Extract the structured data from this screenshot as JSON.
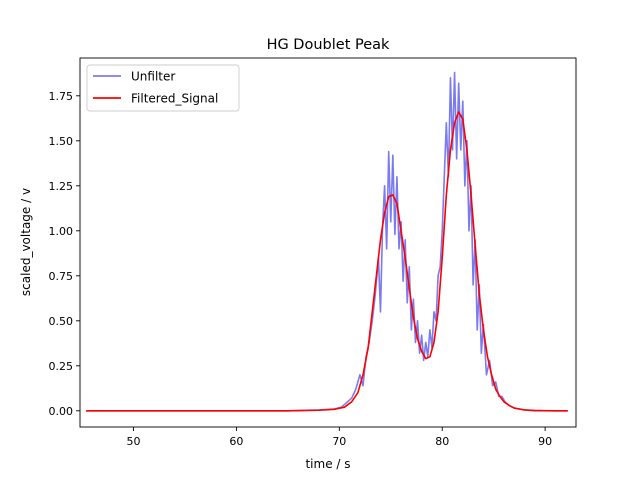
{
  "chart_data": {
    "type": "line",
    "title": "HG Doublet Peak",
    "xlabel": "time / s",
    "ylabel": "scaled_voltage / v",
    "xlim": [
      44.8,
      93.0
    ],
    "ylim": [
      -0.09,
      1.96
    ],
    "xticks": [
      50,
      60,
      70,
      80,
      90
    ],
    "yticks": [
      0.0,
      0.25,
      0.5,
      0.75,
      1.0,
      1.25,
      1.5,
      1.75
    ],
    "xtick_labels": [
      "50",
      "60",
      "70",
      "80",
      "90"
    ],
    "ytick_labels": [
      "0.00",
      "0.25",
      "0.50",
      "0.75",
      "1.00",
      "1.25",
      "1.50",
      "1.75"
    ],
    "grid": false,
    "legend_position": "top-left",
    "series": [
      {
        "name": "Unfilter",
        "color": "#7b7bf0",
        "x": [
          45.4,
          48,
          50,
          55,
          60,
          65,
          68,
          69.5,
          70.2,
          70.8,
          71.2,
          71.6,
          72.0,
          72.3,
          72.6,
          72.9,
          73.2,
          73.5,
          73.8,
          74.0,
          74.2,
          74.4,
          74.6,
          74.8,
          75.0,
          75.2,
          75.4,
          75.6,
          75.8,
          76.0,
          76.2,
          76.4,
          76.6,
          76.8,
          77.0,
          77.2,
          77.4,
          77.6,
          77.8,
          78.0,
          78.2,
          78.4,
          78.6,
          78.8,
          79.0,
          79.2,
          79.4,
          79.6,
          79.8,
          80.0,
          80.2,
          80.4,
          80.6,
          80.8,
          81.0,
          81.2,
          81.4,
          81.6,
          81.8,
          82.0,
          82.2,
          82.4,
          82.6,
          82.8,
          83.0,
          83.2,
          83.4,
          83.6,
          83.8,
          84.0,
          84.3,
          84.6,
          84.9,
          85.2,
          85.5,
          85.8,
          86.1,
          86.5,
          87.0,
          87.5,
          88.0,
          89.0,
          90.0,
          91.0,
          92.2
        ],
        "y": [
          0.0,
          0.0,
          0.0,
          0.0,
          0.0,
          0.0,
          0.005,
          0.01,
          0.02,
          0.05,
          0.07,
          0.12,
          0.2,
          0.14,
          0.3,
          0.38,
          0.5,
          0.65,
          0.85,
          0.55,
          1.02,
          1.25,
          0.9,
          1.44,
          1.05,
          1.42,
          0.98,
          1.3,
          0.9,
          1.05,
          0.72,
          0.95,
          0.6,
          0.8,
          0.45,
          0.62,
          0.38,
          0.5,
          0.32,
          0.42,
          0.28,
          0.38,
          0.3,
          0.45,
          0.35,
          0.55,
          0.5,
          0.75,
          0.8,
          1.0,
          1.3,
          1.6,
          1.3,
          1.85,
          1.45,
          1.88,
          1.4,
          1.82,
          1.45,
          1.72,
          1.25,
          1.5,
          1.0,
          1.25,
          0.7,
          0.95,
          0.45,
          0.7,
          0.32,
          0.48,
          0.2,
          0.28,
          0.14,
          0.16,
          0.08,
          0.08,
          0.05,
          0.03,
          0.015,
          0.01,
          0.005,
          0.0,
          0.0,
          0.0,
          0.0
        ]
      },
      {
        "name": "Filtered_Signal",
        "color": "#ff0000",
        "x": [
          45.4,
          50,
          55,
          60,
          65,
          68,
          69.5,
          70.5,
          71.2,
          71.8,
          72.3,
          72.8,
          73.2,
          73.6,
          74.0,
          74.4,
          74.8,
          75.2,
          75.6,
          76.0,
          76.4,
          76.8,
          77.2,
          77.6,
          78.0,
          78.4,
          78.8,
          79.2,
          79.6,
          80.0,
          80.4,
          80.8,
          81.2,
          81.6,
          82.0,
          82.4,
          82.8,
          83.2,
          83.6,
          84.0,
          84.4,
          84.8,
          85.2,
          85.6,
          86.0,
          86.5,
          87.0,
          87.5,
          88.0,
          89.0,
          90.0,
          91.0,
          92.2
        ],
        "y": [
          0.0,
          0.0,
          0.0,
          0.0,
          0.0,
          0.003,
          0.008,
          0.02,
          0.05,
          0.1,
          0.2,
          0.35,
          0.55,
          0.75,
          0.95,
          1.1,
          1.19,
          1.2,
          1.15,
          1.0,
          0.85,
          0.68,
          0.52,
          0.4,
          0.33,
          0.29,
          0.3,
          0.38,
          0.55,
          0.85,
          1.2,
          1.45,
          1.6,
          1.66,
          1.62,
          1.45,
          1.2,
          0.92,
          0.65,
          0.45,
          0.3,
          0.2,
          0.12,
          0.08,
          0.05,
          0.03,
          0.015,
          0.01,
          0.005,
          0.002,
          0.001,
          0.0,
          0.0
        ]
      }
    ]
  }
}
